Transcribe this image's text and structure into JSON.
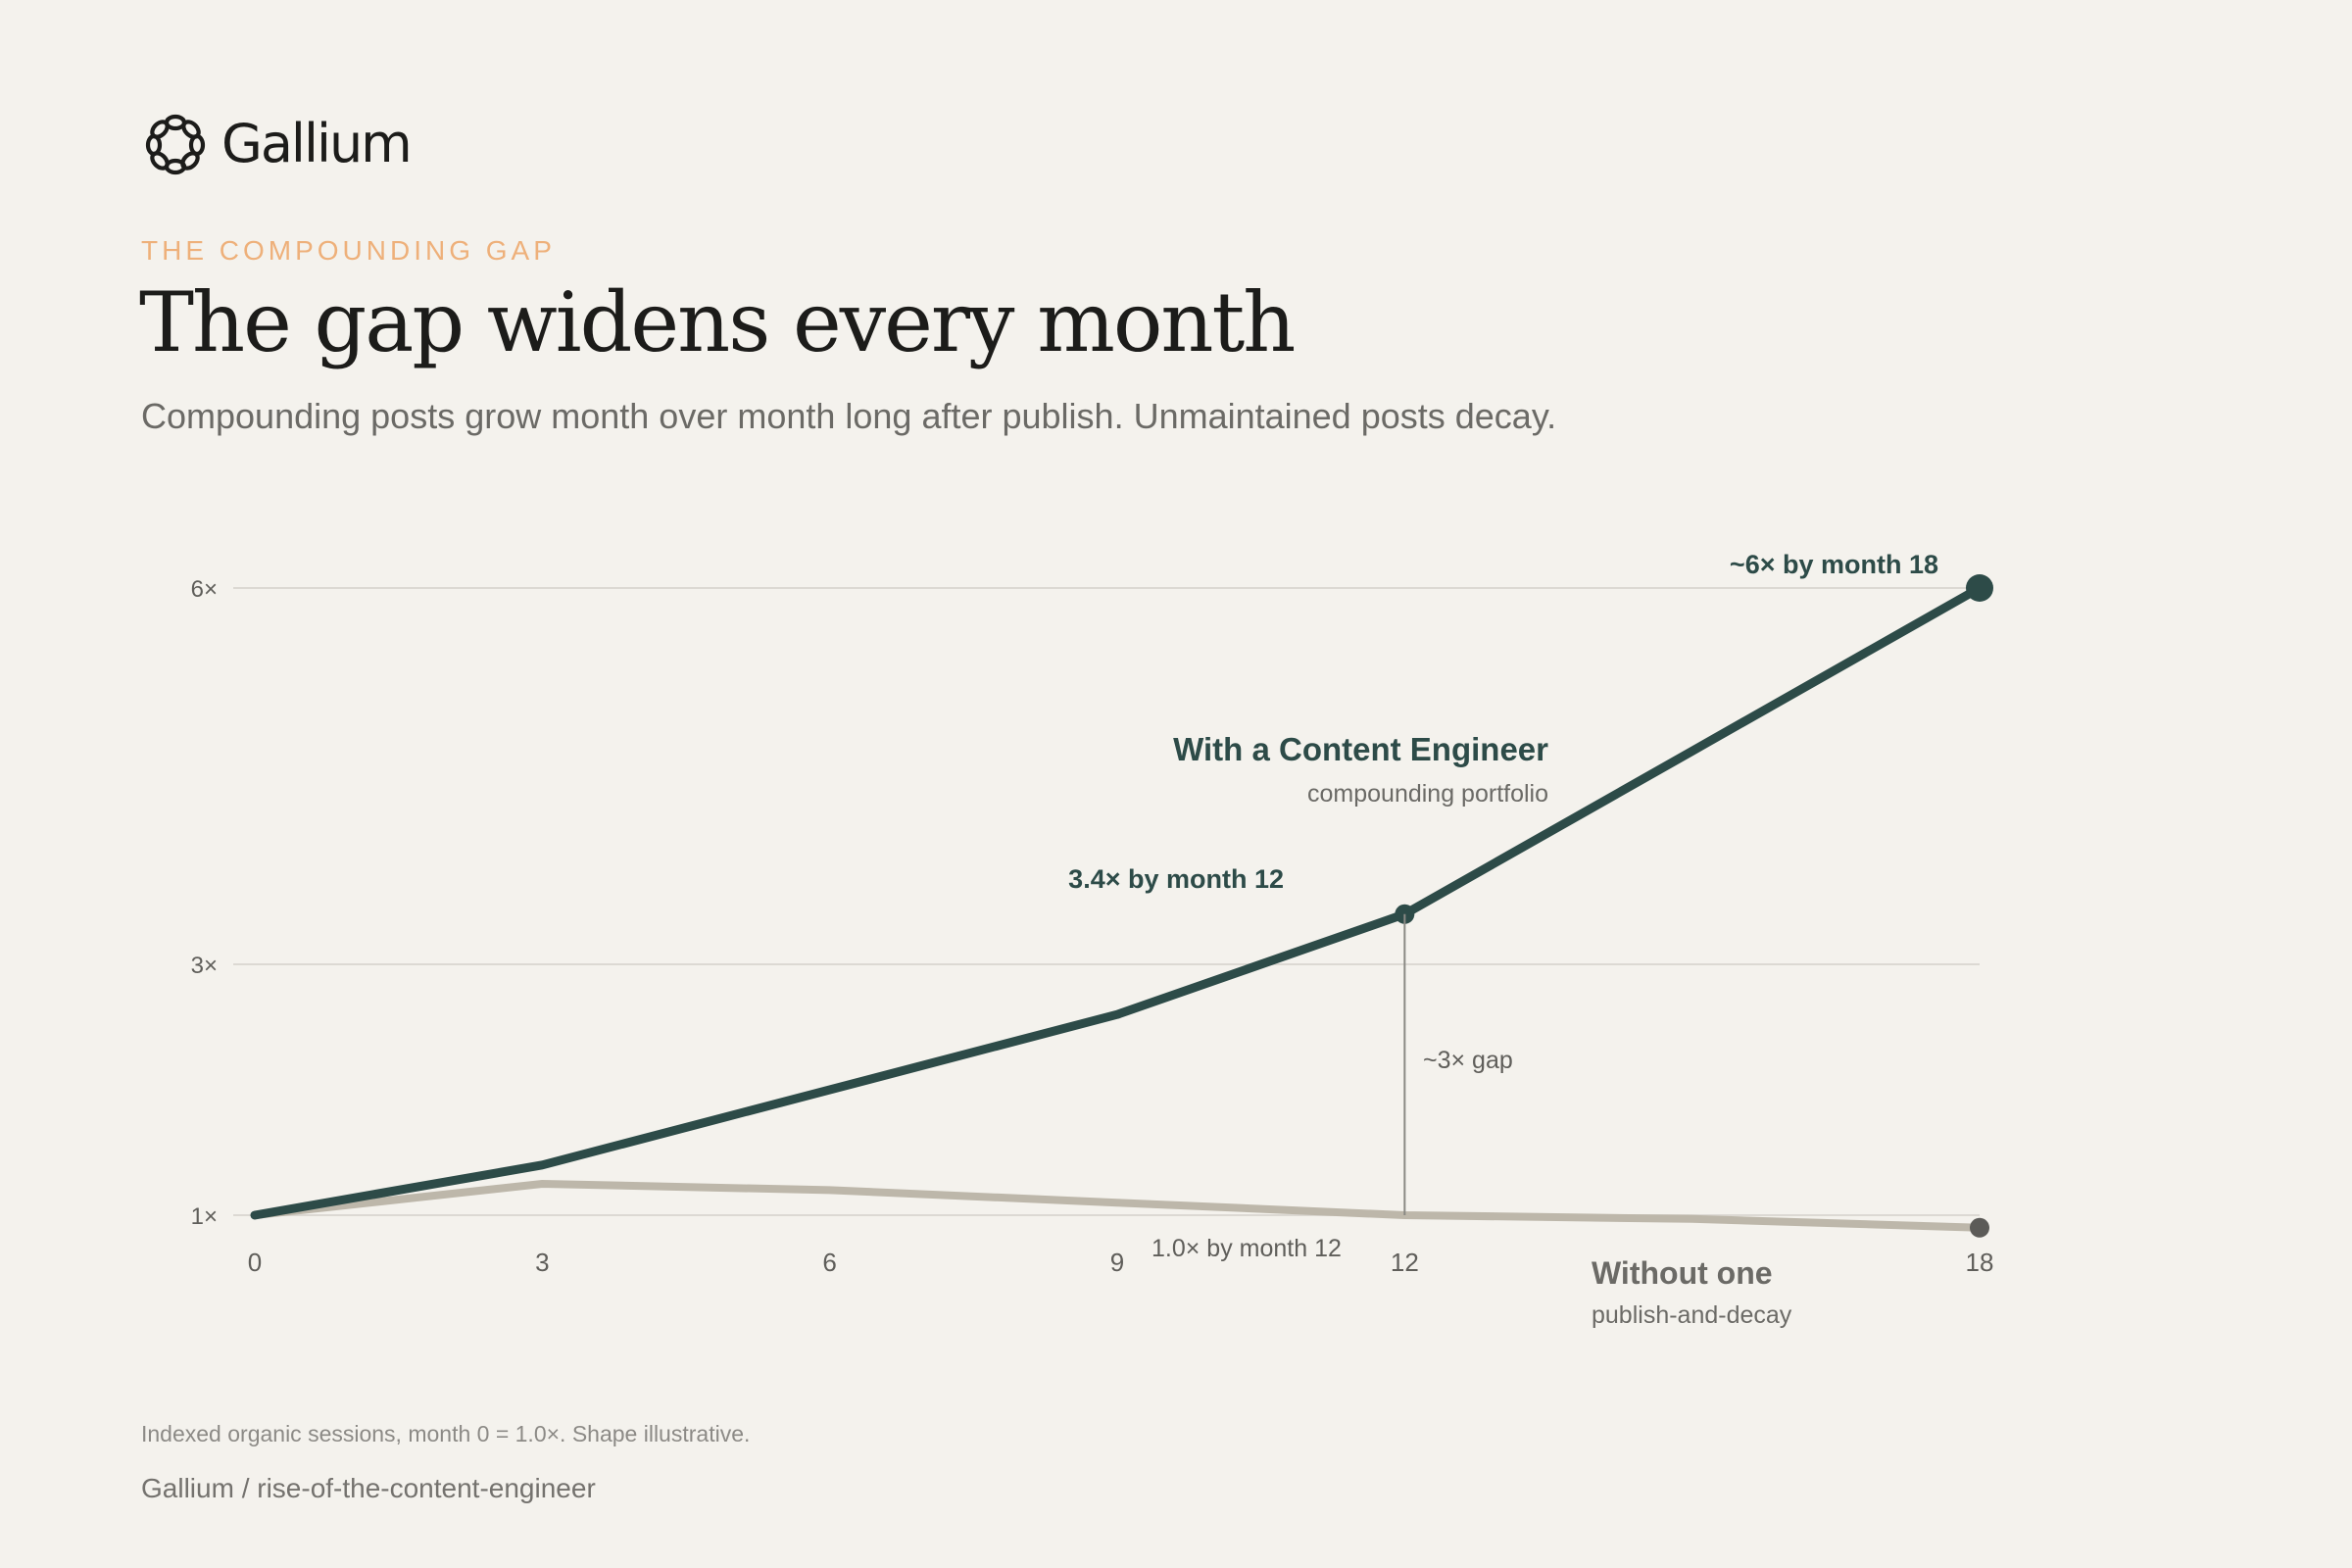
{
  "brand": {
    "name": "Gallium",
    "logo_icon": "chain-ring-logo-icon"
  },
  "header": {
    "eyebrow": "THE COMPOUNDING GAP",
    "title": "The gap widens every month",
    "subtitle": "Compounding posts grow month over month long after publish. Unmaintained posts decay."
  },
  "footer": {
    "note": "Indexed organic sessions, month 0 = 1.0×. Shape illustrative.",
    "source": "Gallium / rise-of-the-content-engineer"
  },
  "colors": {
    "background": "#f4f2ed",
    "eyebrow": "#eeb07a",
    "with_series": "#2d4b48",
    "without_series": "#bdb7aa",
    "without_endpoint": "#5c5b58",
    "gridline": "#dcd9d3",
    "axis_text": "#5f5e5a"
  },
  "chart_data": {
    "type": "line",
    "x": [
      0,
      3,
      6,
      9,
      12,
      15,
      18
    ],
    "xticks": [
      "0",
      "3",
      "6",
      "9",
      "12",
      "18"
    ],
    "xtick_values": [
      0,
      3,
      6,
      9,
      12,
      18
    ],
    "yticks": [
      "1×",
      "3×",
      "6×"
    ],
    "ytick_values": [
      1,
      3,
      6
    ],
    "xlim": [
      0,
      18
    ],
    "ylim": [
      1,
      6
    ],
    "grid": true,
    "series": [
      {
        "key": "with",
        "name": "With a Content Engineer",
        "caption": "compounding portfolio",
        "values": [
          1.0,
          1.4,
          2.0,
          2.6,
          3.4,
          4.7,
          6.0
        ]
      },
      {
        "key": "without",
        "name": "Without one",
        "caption": "publish-and-decay",
        "values": [
          1.0,
          1.25,
          1.2,
          1.1,
          1.0,
          0.97,
          0.9
        ]
      }
    ],
    "annotations": {
      "end_label": "~6× by month 18",
      "mid_label": "3.4× by month 12",
      "gap_label": "~3× gap",
      "base_label": "1.0× by month 12"
    }
  }
}
